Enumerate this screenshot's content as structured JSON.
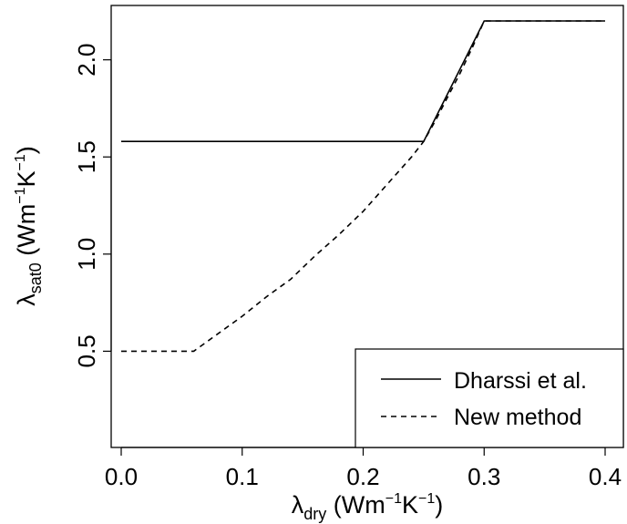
{
  "chart_data": {
    "type": "line",
    "title": "",
    "xlabel": {
      "main": "λ",
      "sub": "dry",
      "unit_pre": " (Wm",
      "unit_exp1": "−1",
      "unit_mid": "K",
      "unit_exp2": "−1",
      "unit_post": ")"
    },
    "ylabel": {
      "main": "λ",
      "sub": "sat0",
      "unit_pre": " (Wm",
      "unit_exp1": "−1",
      "unit_mid": "K",
      "unit_exp2": "−1",
      "unit_post": ")"
    },
    "xlim": [
      0.0,
      0.4
    ],
    "ylim": [
      0.0,
      2.2
    ],
    "xticks": [
      0.0,
      0.1,
      0.2,
      0.3,
      0.4
    ],
    "xtick_labels": [
      "0.0",
      "0.1",
      "0.2",
      "0.3",
      "0.4"
    ],
    "yticks": [
      0.5,
      1.0,
      1.5,
      2.0
    ],
    "ytick_labels": [
      "0.5",
      "1.0",
      "1.5",
      "2.0"
    ],
    "grid": false,
    "legend_position": "bottom-right",
    "series": [
      {
        "name": "Dharssi et al.",
        "style": "solid",
        "color": "#000000",
        "x": [
          0.0,
          0.25,
          0.3,
          0.4
        ],
        "y": [
          1.58,
          1.58,
          2.2,
          2.2
        ]
      },
      {
        "name": "New method",
        "style": "dashed",
        "color": "#000000",
        "x": [
          0.0,
          0.06,
          0.08,
          0.1,
          0.12,
          0.14,
          0.16,
          0.18,
          0.2,
          0.22,
          0.24,
          0.25,
          0.26,
          0.27,
          0.28,
          0.29,
          0.3,
          0.4
        ],
        "y": [
          0.5,
          0.5,
          0.59,
          0.68,
          0.78,
          0.87,
          0.99,
          1.1,
          1.22,
          1.36,
          1.5,
          1.58,
          1.69,
          1.81,
          1.93,
          2.06,
          2.2,
          2.2
        ]
      }
    ]
  }
}
